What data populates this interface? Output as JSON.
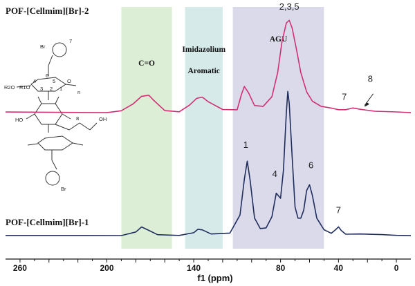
{
  "chart_data": {
    "type": "line",
    "xlabel": "f1 (ppm)",
    "x_reversed": true,
    "xlim": [
      270,
      -10
    ],
    "x_ticks": [
      260,
      200,
      140,
      80,
      40,
      0
    ],
    "grid": false,
    "series": [
      {
        "name": "POF-[Cellmim][Br]-2",
        "color": "#d12f74",
        "x": [
          270,
          200,
          190,
          182,
          176,
          171,
          168,
          160,
          150,
          143,
          138,
          134,
          130,
          120,
          110,
          107,
          105,
          102,
          98,
          92,
          86,
          82,
          79,
          76,
          74,
          72,
          69,
          66,
          62,
          58,
          52,
          45,
          40,
          35,
          30,
          25,
          15,
          0,
          -10
        ],
        "y": [
          0.02,
          0.02,
          0.04,
          0.1,
          0.17,
          0.18,
          0.14,
          0.04,
          0.03,
          0.09,
          0.15,
          0.16,
          0.12,
          0.05,
          0.05,
          0.2,
          0.27,
          0.2,
          0.08,
          0.08,
          0.18,
          0.42,
          0.72,
          0.9,
          0.93,
          0.86,
          0.65,
          0.42,
          0.22,
          0.12,
          0.07,
          0.06,
          0.05,
          0.05,
          0.06,
          0.04,
          0.02,
          0.02,
          0.02
        ]
      },
      {
        "name": "POF-[Cellmim][Br]-1",
        "color": "#1f2d5c",
        "x": [
          270,
          190,
          180,
          176,
          172,
          165,
          150,
          140,
          137,
          134,
          128,
          115,
          108,
          105,
          103,
          101,
          98,
          94,
          90,
          86,
          83,
          80,
          78,
          76,
          75,
          74,
          72,
          70,
          68,
          66,
          64,
          62,
          60,
          58,
          55,
          50,
          45,
          42,
          40,
          38,
          35,
          25,
          10,
          0,
          -10
        ],
        "y": [
          0.01,
          0.01,
          0.03,
          0.06,
          0.04,
          0.01,
          0.01,
          0.03,
          0.05,
          0.04,
          0.01,
          0.02,
          0.15,
          0.4,
          0.52,
          0.38,
          0.12,
          0.05,
          0.06,
          0.14,
          0.3,
          0.26,
          0.45,
          0.85,
          1.0,
          0.92,
          0.55,
          0.2,
          0.12,
          0.12,
          0.18,
          0.32,
          0.36,
          0.28,
          0.12,
          0.04,
          0.02,
          0.05,
          0.07,
          0.04,
          0.01,
          0.01,
          0.01,
          0.01,
          0.01
        ]
      }
    ],
    "regions": [
      {
        "label": "C=O",
        "from": 190,
        "to": 155,
        "color": "#d6ebcf"
      },
      {
        "label": "Imidazolium",
        "label2": "Aromatic",
        "from": 146,
        "to": 120,
        "color": "#cfe6e6"
      },
      {
        "label": "AGU",
        "from": 113,
        "to": 50,
        "color": "#d4d4e6"
      }
    ],
    "peak_labels": [
      {
        "text": "2,3,5",
        "x": 74,
        "y": 1.0,
        "series": 0
      },
      {
        "text": "7",
        "x": 36,
        "y": 0.1,
        "series": 0
      },
      {
        "text": "8",
        "x": 18,
        "y": 0.28,
        "series": 0
      },
      {
        "text": "1",
        "x": 104,
        "y": 0.58,
        "series": 1
      },
      {
        "text": "4",
        "x": 84,
        "y": 0.38,
        "series": 1
      },
      {
        "text": "6",
        "x": 59,
        "y": 0.44,
        "series": 1
      },
      {
        "text": "7",
        "x": 40,
        "y": 0.13,
        "series": 1
      }
    ],
    "arrow_label": "8"
  },
  "structure": {
    "labels": [
      "Br",
      "7",
      "6",
      "4",
      "5",
      "3",
      "2",
      "1",
      "O",
      "R2O",
      "R1O",
      "n",
      "HO",
      "OH",
      "8",
      "Br"
    ]
  }
}
